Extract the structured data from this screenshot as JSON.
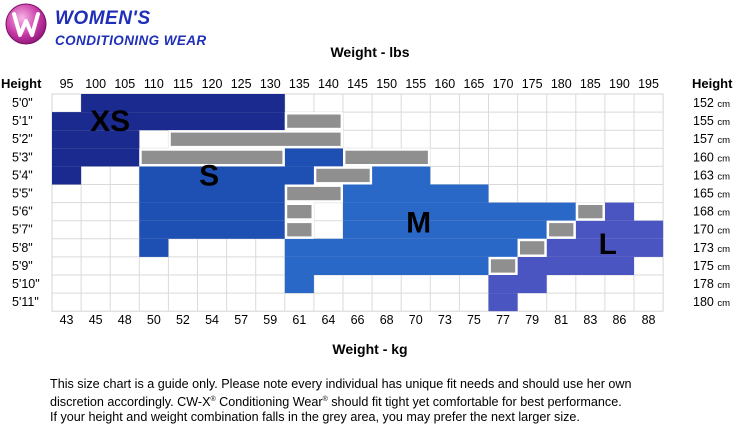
{
  "brand": {
    "line1": "WOMEN'S",
    "line2": "CONDITIONING WEAR"
  },
  "chart_data": {
    "type": "heatmap",
    "title": "Weight - lbs",
    "xlabel": "Weight - kg",
    "ylabel": "Height",
    "right_ylabel": "Height",
    "x_lbs": [
      "95",
      "100",
      "105",
      "110",
      "115",
      "120",
      "125",
      "130",
      "135",
      "140",
      "145",
      "150",
      "155",
      "160",
      "165",
      "170",
      "175",
      "180",
      "185",
      "190",
      "195"
    ],
    "x_kg": [
      "43",
      "45",
      "48",
      "50",
      "52",
      "54",
      "57",
      "59",
      "61",
      "64",
      "66",
      "68",
      "70",
      "73",
      "75",
      "77",
      "79",
      "81",
      "83",
      "86",
      "88"
    ],
    "y_ft": [
      "5'0\"",
      "5'1\"",
      "5'2\"",
      "5'3\"",
      "5'4\"",
      "5'5\"",
      "5'6\"",
      "5'7\"",
      "5'8\"",
      "5'9\"",
      "5'10\"",
      "5'11\""
    ],
    "y_cm": [
      "152 cm",
      "155 cm",
      "157 cm",
      "160 cm",
      "163 cm",
      "165 cm",
      "168 cm",
      "170 cm",
      "173 cm",
      "175 cm",
      "178 cm",
      "180 cm"
    ],
    "sizes": [
      {
        "name": "XS",
        "color": "#1b2a8e",
        "cells": [
          [
            0,
            1,
            7
          ],
          [
            1,
            0,
            7
          ],
          [
            2,
            0,
            2
          ],
          [
            3,
            0,
            2
          ],
          [
            4,
            0,
            0
          ]
        ]
      },
      {
        "name": "S",
        "color": "#1e4fb3",
        "cells": [
          [
            3,
            8,
            9
          ],
          [
            4,
            3,
            9
          ],
          [
            5,
            3,
            7
          ],
          [
            6,
            3,
            7
          ],
          [
            7,
            3,
            7
          ],
          [
            8,
            3,
            3
          ]
        ]
      },
      {
        "name": "M",
        "color": "#2a68c8",
        "cells": [
          [
            4,
            10,
            12
          ],
          [
            5,
            10,
            14
          ],
          [
            6,
            10,
            17
          ],
          [
            7,
            10,
            16
          ],
          [
            8,
            8,
            15
          ],
          [
            9,
            8,
            15
          ],
          [
            10,
            8,
            8
          ]
        ]
      },
      {
        "name": "L",
        "color": "#4b55c2",
        "cells": [
          [
            6,
            19,
            19
          ],
          [
            7,
            18,
            20
          ],
          [
            8,
            17,
            20
          ],
          [
            9,
            16,
            19
          ],
          [
            10,
            15,
            16
          ],
          [
            11,
            15,
            15
          ]
        ]
      }
    ],
    "grey_areas": {
      "color": "#8f8f8f",
      "cells": [
        [
          1,
          8,
          9
        ],
        [
          2,
          4,
          9
        ],
        [
          3,
          3,
          7
        ],
        [
          3,
          10,
          12
        ],
        [
          4,
          9,
          10
        ],
        [
          5,
          8,
          9
        ],
        [
          6,
          8,
          8
        ],
        [
          7,
          8,
          8
        ],
        [
          6,
          18,
          18
        ],
        [
          7,
          17,
          17
        ],
        [
          8,
          16,
          16
        ],
        [
          9,
          15,
          15
        ]
      ]
    },
    "size_label_positions": [
      {
        "name": "XS",
        "row": 1.5,
        "col": 2
      },
      {
        "name": "S",
        "row": 4.5,
        "col": 5.4
      },
      {
        "name": "M",
        "row": 7.1,
        "col": 12.6
      },
      {
        "name": "L",
        "row": 8.3,
        "col": 19.1
      }
    ],
    "grid": true
  },
  "disclaimer": {
    "line1": "This size chart is a guide only. Please note every individual has unique fit needs and should use her own",
    "line2a": "discretion accordingly. CW-X",
    "reg": "®",
    "line2b": " Conditioning Wear",
    "line2c": " should fit tight yet comfortable for best performance.",
    "line3": "If your height and weight combination falls in the grey area, you may prefer the next larger size."
  }
}
